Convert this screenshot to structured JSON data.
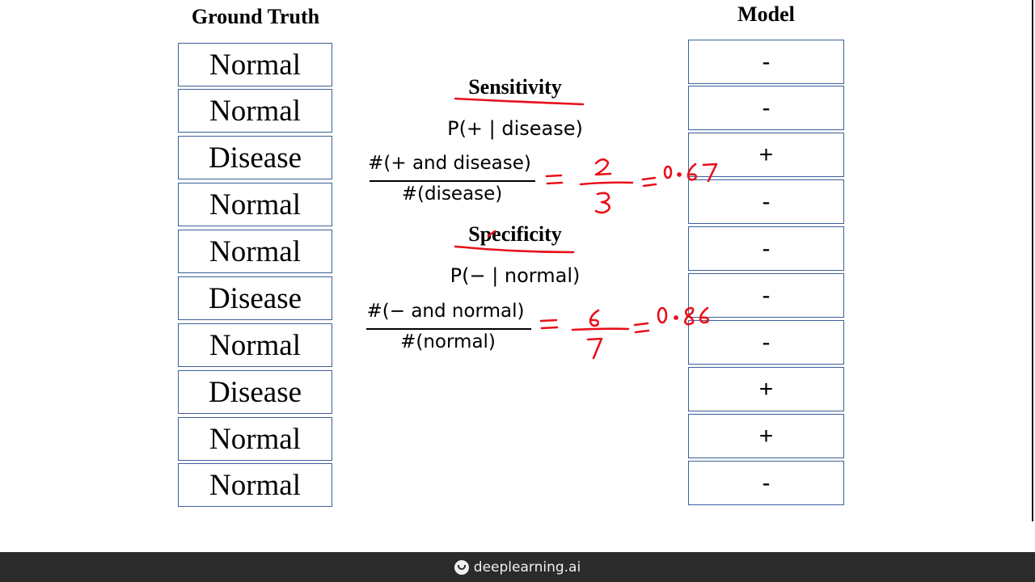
{
  "ground_truth": {
    "title": "Ground Truth",
    "cells": [
      "Normal",
      "Normal",
      "Disease",
      "Normal",
      "Normal",
      "Disease",
      "Normal",
      "Disease",
      "Normal",
      "Normal"
    ]
  },
  "model": {
    "title": "Model",
    "cells": [
      "-",
      "-",
      "+",
      "-",
      "-",
      "-",
      "-",
      "+",
      "+",
      "-"
    ]
  },
  "sensitivity": {
    "heading": "Sensitivity",
    "probability": "P(+ | disease)",
    "numerator": "#(+ and disease)",
    "denominator": "#(disease)",
    "handwritten_fraction": "2/3",
    "handwritten_result": "0.67"
  },
  "specificity": {
    "heading": "Specificity",
    "probability": "P(− | normal)",
    "numerator": "#(− and normal)",
    "denominator": "#(normal)",
    "handwritten_fraction": "6/7",
    "handwritten_result": "0.86"
  },
  "ink_color": "#e8101a",
  "footer": {
    "brand": "deeplearning.ai"
  }
}
